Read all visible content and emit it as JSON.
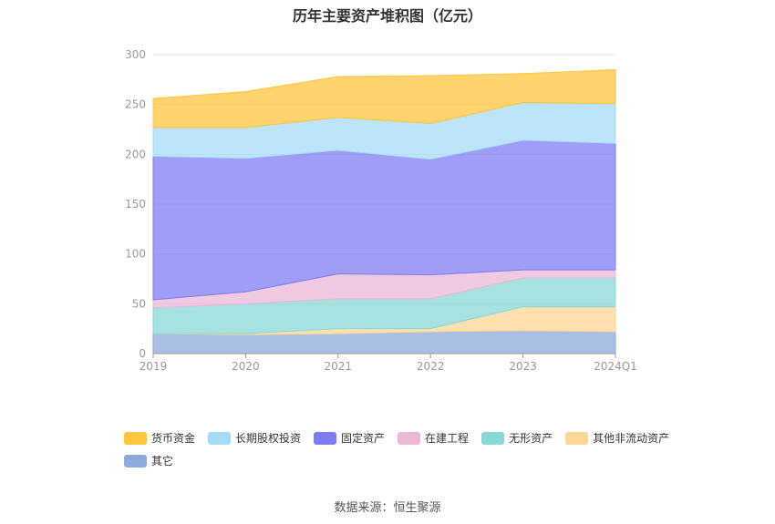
{
  "chart_data": {
    "type": "area",
    "stacked": true,
    "title": "历年主要资产堆积图（亿元）",
    "source": "数据来源：恒生聚源",
    "categories": [
      "2019",
      "2020",
      "2021",
      "2022",
      "2023",
      "2024Q1"
    ],
    "ylim": [
      0,
      300
    ],
    "yticks": [
      0,
      50,
      100,
      150,
      200,
      250,
      300
    ],
    "grid": true,
    "legend_position": "bottom",
    "series": [
      {
        "name": "其它",
        "color": "#8faadc",
        "values": [
          20,
          19,
          20,
          22,
          23,
          22
        ]
      },
      {
        "name": "其他非流动资产",
        "color": "#ffd797",
        "values": [
          0,
          1,
          5,
          3,
          24,
          25
        ]
      },
      {
        "name": "无形资产",
        "color": "#8ad8d6",
        "values": [
          26,
          30,
          30,
          30,
          29,
          29
        ]
      },
      {
        "name": "在建工程",
        "color": "#ebb8d8",
        "values": [
          8,
          12,
          25,
          24,
          8,
          8
        ]
      },
      {
        "name": "固定资产",
        "color": "#7f7cf2",
        "values": [
          144,
          134,
          124,
          116,
          130,
          127
        ]
      },
      {
        "name": "长期股权投资",
        "color": "#a6dbf8",
        "values": [
          29,
          31,
          33,
          36,
          38,
          40
        ]
      },
      {
        "name": "货币资金",
        "color": "#ffc53d",
        "values": [
          29,
          36,
          41,
          48,
          29,
          34
        ]
      }
    ],
    "legend_order": [
      "货币资金",
      "长期股权投资",
      "固定资产",
      "在建工程",
      "无形资产",
      "其他非流动资产",
      "其它"
    ]
  }
}
